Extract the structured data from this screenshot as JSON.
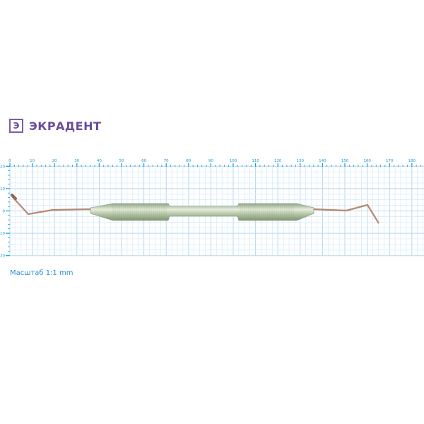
{
  "brand": {
    "name": "ЭКРАДЕНТ",
    "logo_icon": "circle-e-logo"
  },
  "ruler": {
    "unit": "mm",
    "x_ticks": [
      0,
      10,
      20,
      30,
      40,
      50,
      60,
      70,
      80,
      90,
      100,
      110,
      120,
      130,
      140,
      150,
      160,
      170,
      180
    ],
    "y_ticks": [
      20,
      10,
      0,
      10,
      20
    ],
    "grid_color": "#cfe6f7",
    "tick_color": "#1a9ad8"
  },
  "scale_label": "Масштаб 1:1 mm",
  "instrument": {
    "handle_color": "#b9c9a8",
    "tip_color": "#b78a70"
  }
}
